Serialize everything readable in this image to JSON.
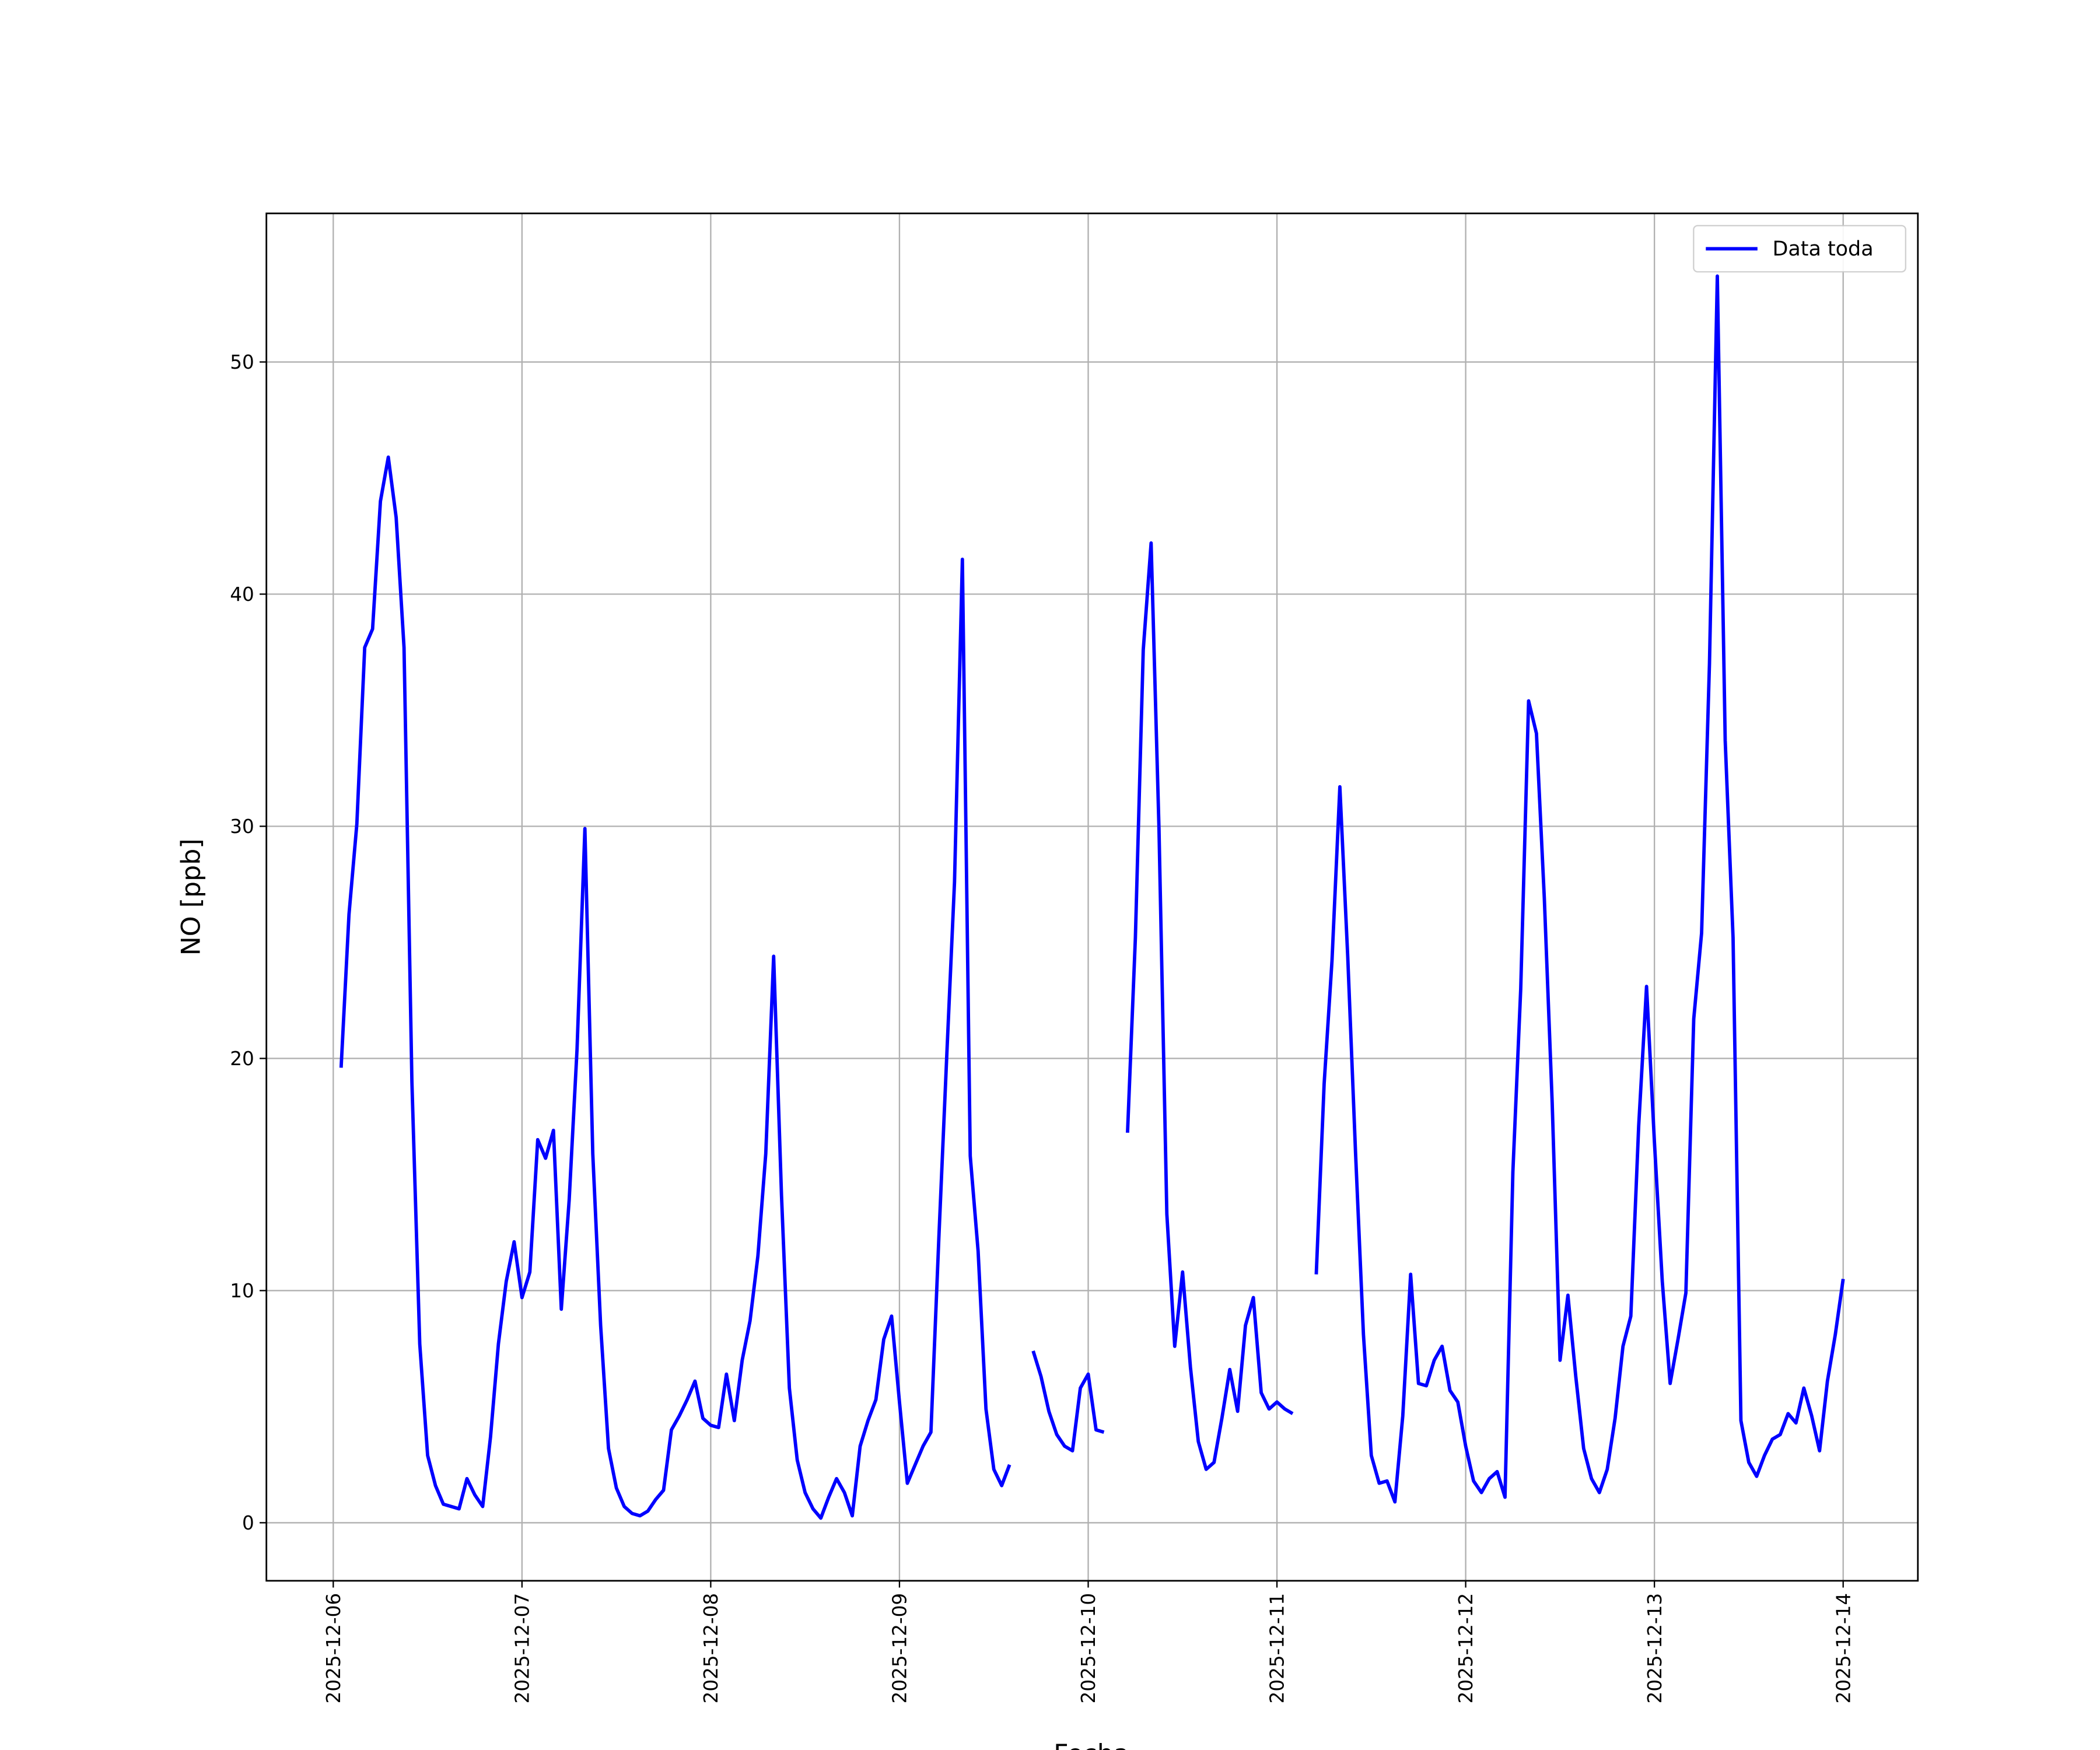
{
  "chart_data": {
    "type": "line",
    "xlabel": "Fecha",
    "ylabel": "NO [ppb]",
    "x": [
      "2025-12-06T01:00",
      "2025-12-06T02:00",
      "2025-12-06T03:00",
      "2025-12-06T04:00",
      "2025-12-06T05:00",
      "2025-12-06T06:00",
      "2025-12-06T07:00",
      "2025-12-06T08:00",
      "2025-12-06T09:00",
      "2025-12-06T10:00",
      "2025-12-06T11:00",
      "2025-12-06T12:00",
      "2025-12-06T13:00",
      "2025-12-06T14:00",
      "2025-12-06T15:00",
      "2025-12-06T16:00",
      "2025-12-06T17:00",
      "2025-12-06T18:00",
      "2025-12-06T19:00",
      "2025-12-06T20:00",
      "2025-12-06T21:00",
      "2025-12-06T22:00",
      "2025-12-06T23:00",
      "2025-12-07T00:00",
      "2025-12-07T01:00",
      "2025-12-07T02:00",
      "2025-12-07T03:00",
      "2025-12-07T04:00",
      "2025-12-07T05:00",
      "2025-12-07T06:00",
      "2025-12-07T07:00",
      "2025-12-07T08:00",
      "2025-12-07T09:00",
      "2025-12-07T10:00",
      "2025-12-07T11:00",
      "2025-12-07T12:00",
      "2025-12-07T13:00",
      "2025-12-07T14:00",
      "2025-12-07T15:00",
      "2025-12-07T16:00",
      "2025-12-07T17:00",
      "2025-12-07T18:00",
      "2025-12-07T19:00",
      "2025-12-07T20:00",
      "2025-12-07T21:00",
      "2025-12-07T22:00",
      "2025-12-07T23:00",
      "2025-12-08T00:00",
      "2025-12-08T01:00",
      "2025-12-08T02:00",
      "2025-12-08T03:00",
      "2025-12-08T04:00",
      "2025-12-08T05:00",
      "2025-12-08T06:00",
      "2025-12-08T07:00",
      "2025-12-08T08:00",
      "2025-12-08T09:00",
      "2025-12-08T10:00",
      "2025-12-08T11:00",
      "2025-12-08T12:00",
      "2025-12-08T13:00",
      "2025-12-08T14:00",
      "2025-12-08T15:00",
      "2025-12-08T16:00",
      "2025-12-08T17:00",
      "2025-12-08T18:00",
      "2025-12-08T19:00",
      "2025-12-08T20:00",
      "2025-12-08T21:00",
      "2025-12-08T22:00",
      "2025-12-08T23:00",
      "2025-12-09T00:00",
      "2025-12-09T01:00",
      "2025-12-09T02:00",
      "2025-12-09T03:00",
      "2025-12-09T04:00",
      "2025-12-09T05:00",
      "2025-12-09T06:00",
      "2025-12-09T07:00",
      "2025-12-09T08:00",
      "2025-12-09T09:00",
      "2025-12-09T10:00",
      "2025-12-09T11:00",
      "2025-12-09T12:00",
      "2025-12-09T13:00",
      "2025-12-09T14:00",
      "2025-12-09T15:00",
      "2025-12-09T16:00",
      "2025-12-09T17:00",
      "2025-12-09T18:00",
      "2025-12-09T19:00",
      "2025-12-09T20:00",
      "2025-12-09T21:00",
      "2025-12-09T22:00",
      "2025-12-09T23:00",
      "2025-12-10T00:00",
      "2025-12-10T01:00",
      "2025-12-10T02:00",
      "2025-12-10T03:00",
      "2025-12-10T04:00",
      "2025-12-10T05:00",
      "2025-12-10T06:00",
      "2025-12-10T07:00",
      "2025-12-10T08:00",
      "2025-12-10T09:00",
      "2025-12-10T10:00",
      "2025-12-10T11:00",
      "2025-12-10T12:00",
      "2025-12-10T13:00",
      "2025-12-10T14:00",
      "2025-12-10T15:00",
      "2025-12-10T16:00",
      "2025-12-10T17:00",
      "2025-12-10T18:00",
      "2025-12-10T19:00",
      "2025-12-10T20:00",
      "2025-12-10T21:00",
      "2025-12-10T22:00",
      "2025-12-10T23:00",
      "2025-12-11T00:00",
      "2025-12-11T01:00",
      "2025-12-11T02:00",
      "2025-12-11T03:00",
      "2025-12-11T04:00",
      "2025-12-11T05:00",
      "2025-12-11T06:00",
      "2025-12-11T07:00",
      "2025-12-11T08:00",
      "2025-12-11T09:00",
      "2025-12-11T10:00",
      "2025-12-11T11:00",
      "2025-12-11T12:00",
      "2025-12-11T13:00",
      "2025-12-11T14:00",
      "2025-12-11T15:00",
      "2025-12-11T16:00",
      "2025-12-11T17:00",
      "2025-12-11T18:00",
      "2025-12-11T19:00",
      "2025-12-11T20:00",
      "2025-12-11T21:00",
      "2025-12-11T22:00",
      "2025-12-11T23:00",
      "2025-12-12T00:00",
      "2025-12-12T01:00",
      "2025-12-12T02:00",
      "2025-12-12T03:00",
      "2025-12-12T04:00",
      "2025-12-12T05:00",
      "2025-12-12T06:00",
      "2025-12-12T07:00",
      "2025-12-12T08:00",
      "2025-12-12T09:00",
      "2025-12-12T10:00",
      "2025-12-12T11:00",
      "2025-12-12T12:00",
      "2025-12-12T13:00",
      "2025-12-12T14:00",
      "2025-12-12T15:00",
      "2025-12-12T16:00",
      "2025-12-12T17:00",
      "2025-12-12T18:00",
      "2025-12-12T19:00",
      "2025-12-12T20:00",
      "2025-12-12T21:00",
      "2025-12-12T22:00",
      "2025-12-12T23:00",
      "2025-12-13T00:00",
      "2025-12-13T01:00",
      "2025-12-13T02:00",
      "2025-12-13T03:00",
      "2025-12-13T04:00",
      "2025-12-13T05:00",
      "2025-12-13T06:00",
      "2025-12-13T07:00",
      "2025-12-13T08:00",
      "2025-12-13T09:00",
      "2025-12-13T10:00",
      "2025-12-13T11:00",
      "2025-12-13T12:00",
      "2025-12-13T13:00",
      "2025-12-13T14:00",
      "2025-12-13T15:00",
      "2025-12-13T16:00",
      "2025-12-13T17:00",
      "2025-12-13T18:00",
      "2025-12-13T19:00",
      "2025-12-13T20:00",
      "2025-12-13T21:00",
      "2025-12-13T22:00",
      "2025-12-13T23:00",
      "2025-12-14T00:00"
    ],
    "series": [
      {
        "name": "Data toda",
        "color": "#0000ff",
        "values": [
          19.6,
          26.2,
          30.1,
          37.7,
          38.5,
          44.0,
          45.9,
          43.3,
          37.7,
          19.0,
          7.7,
          2.9,
          1.6,
          0.8,
          0.7,
          0.6,
          1.9,
          1.2,
          0.7,
          3.7,
          7.7,
          10.4,
          12.1,
          9.7,
          10.8,
          16.5,
          15.7,
          16.9,
          9.2,
          13.9,
          20.4,
          29.9,
          15.9,
          8.5,
          3.2,
          1.5,
          0.7,
          0.4,
          0.3,
          0.5,
          1.0,
          1.4,
          4.0,
          4.6,
          5.3,
          6.1,
          4.5,
          4.2,
          4.1,
          6.4,
          4.4,
          7.0,
          8.7,
          11.5,
          15.9,
          24.4,
          14.1,
          5.8,
          2.7,
          1.3,
          0.6,
          0.2,
          1.1,
          1.9,
          1.3,
          0.3,
          3.3,
          4.4,
          5.3,
          7.9,
          8.9,
          5.2,
          1.7,
          2.5,
          3.3,
          3.9,
          12.2,
          20.0,
          27.6,
          41.5,
          15.8,
          11.7,
          4.9,
          2.3,
          1.6,
          2.5,
          null,
          null,
          7.4,
          6.3,
          4.8,
          3.8,
          3.3,
          3.1,
          5.8,
          6.4,
          4.0,
          3.9,
          null,
          null,
          16.8,
          25.2,
          37.6,
          42.2,
          29.9,
          13.3,
          7.6,
          10.8,
          6.7,
          3.5,
          2.3,
          2.6,
          4.5,
          6.6,
          4.8,
          8.5,
          9.7,
          5.6,
          4.9,
          5.2,
          4.9,
          4.7,
          null,
          null,
          10.7,
          18.9,
          24.2,
          31.7,
          24.4,
          15.9,
          8.1,
          2.9,
          1.7,
          1.8,
          0.9,
          4.6,
          10.7,
          6.0,
          5.9,
          7.0,
          7.6,
          5.7,
          5.2,
          3.3,
          1.8,
          1.3,
          1.9,
          2.2,
          1.1,
          15.1,
          23.0,
          35.4,
          34.0,
          26.9,
          18.1,
          7.0,
          9.8,
          6.3,
          3.2,
          1.9,
          1.3,
          2.3,
          4.5,
          7.6,
          8.9,
          17.1,
          23.1,
          16.4,
          10.4,
          6.0,
          7.9,
          9.9,
          21.7,
          25.4,
          37.0,
          53.7,
          33.7,
          25.2,
          4.4,
          2.6,
          2.0,
          2.9,
          3.6,
          3.8,
          4.7,
          4.3,
          5.8,
          4.6,
          3.1,
          6.1,
          8.1,
          10.5
        ]
      }
    ],
    "xlim": [
      "2025-12-05T15:30",
      "2025-12-14T09:30"
    ],
    "xticks": [
      "2025-12-06",
      "2025-12-07",
      "2025-12-08",
      "2025-12-09",
      "2025-12-10",
      "2025-12-11",
      "2025-12-12",
      "2025-12-13",
      "2025-12-14"
    ],
    "ylim": [
      -2.5,
      56.4
    ],
    "yticks": [
      0,
      10,
      20,
      30,
      40,
      50
    ],
    "grid": true,
    "legend": "upper right"
  }
}
